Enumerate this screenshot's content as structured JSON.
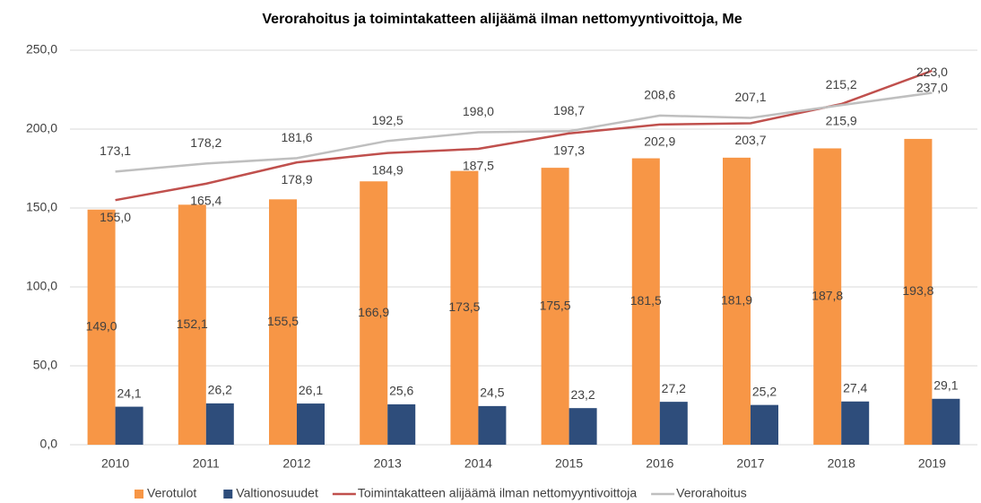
{
  "chart_data": {
    "type": "bar",
    "title": "Verorahoitus ja toimintakatteen alijäämä ilman nettomyyntivoittoja, Me",
    "categories": [
      "2010",
      "2011",
      "2012",
      "2013",
      "2014",
      "2015",
      "2016",
      "2017",
      "2018",
      "2019"
    ],
    "series": [
      {
        "name": "Verotulot",
        "type": "bar",
        "color": "#f79646",
        "values": [
          149.0,
          152.1,
          155.5,
          166.9,
          173.5,
          175.5,
          181.5,
          181.9,
          187.8,
          193.8
        ],
        "value_labels": [
          "149,0",
          "152,1",
          "155,5",
          "166,9",
          "173,5",
          "175,5",
          "181,5",
          "181,9",
          "187,8",
          "193,8"
        ]
      },
      {
        "name": "Valtionosuudet",
        "type": "bar",
        "color": "#2e4d7b",
        "values": [
          24.1,
          26.2,
          26.1,
          25.6,
          24.5,
          23.2,
          27.2,
          25.2,
          27.4,
          29.1
        ],
        "value_labels": [
          "24,1",
          "26,2",
          "26,1",
          "25,6",
          "24,5",
          "23,2",
          "27,2",
          "25,2",
          "27,4",
          "29,1"
        ]
      },
      {
        "name": "Toimintakatteen alijäämä ilman nettomyyntivoittoja",
        "type": "line",
        "color": "#c0504d",
        "values": [
          155.0,
          165.4,
          178.9,
          184.9,
          187.5,
          197.3,
          202.9,
          203.7,
          215.9,
          237.0
        ],
        "value_labels": [
          "155,0",
          "165,4",
          "178,9",
          "184,9",
          "187,5",
          "197,3",
          "202,9",
          "203,7",
          "215,9",
          "237,0"
        ]
      },
      {
        "name": "Verorahoitus",
        "type": "line",
        "color": "#bfbfbf",
        "values": [
          173.1,
          178.2,
          181.6,
          192.5,
          198.0,
          198.7,
          208.6,
          207.1,
          215.2,
          223.0
        ],
        "value_labels": [
          "173,1",
          "178,2",
          "181,6",
          "192,5",
          "198,0",
          "198,7",
          "208,6",
          "207,1",
          "215,2",
          "223,0"
        ]
      }
    ],
    "ylim": [
      0,
      250
    ],
    "yticks": [
      {
        "value": 0,
        "label": "0,0"
      },
      {
        "value": 50,
        "label": "50,0"
      },
      {
        "value": 100,
        "label": "100,0"
      },
      {
        "value": 150,
        "label": "150,0"
      },
      {
        "value": 200,
        "label": "200,0"
      },
      {
        "value": 250,
        "label": "250,0"
      }
    ],
    "grid": true,
    "legend": "bottom"
  }
}
